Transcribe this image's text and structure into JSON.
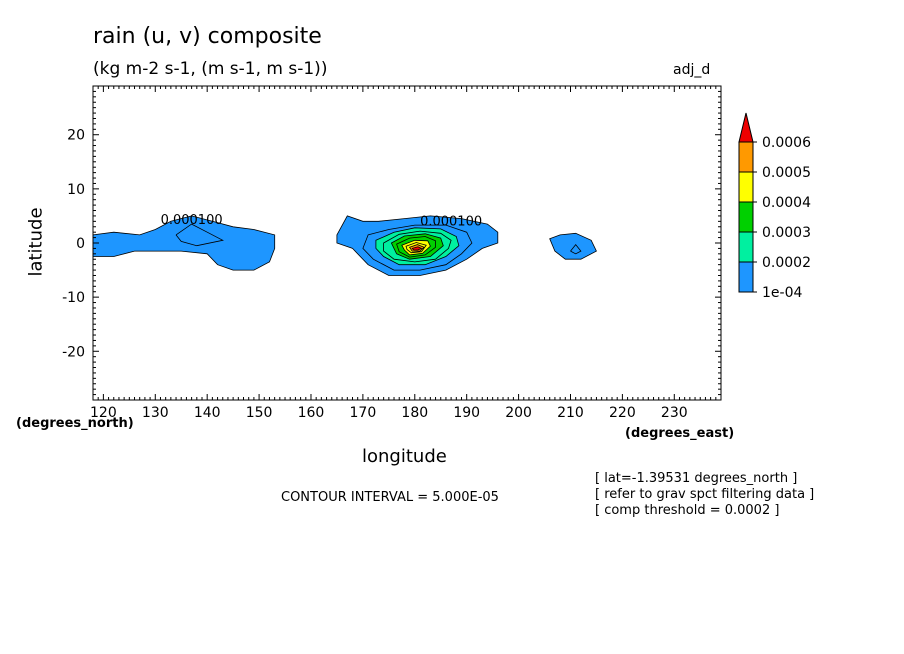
{
  "title": "rain (u, v) composite",
  "subtitle": "(kg m-2 s-1, (m s-1, m s-1))",
  "plot_tag": "adj_d",
  "notes": {
    "contour_interval": "CONTOUR INTERVAL = 5.000E-05",
    "footnotes": [
      "[ lat=-1.39531 degrees_north ]",
      "[ refer to grav spct filtering data ]",
      "[ comp threshold = 0.0002 ]"
    ]
  },
  "colors": {
    "level_1": "#1e96ff",
    "level_2": "#00f0a0",
    "level_3": "#00d000",
    "level_4": "#ffff00",
    "level_5": "#ff9900",
    "level_6": "#ee0000",
    "line": "#000000"
  },
  "chart_data": {
    "type": "contour",
    "title": "rain (u, v) composite",
    "subtitle": "(kg m-2 s-1, (m s-1, m s-1))",
    "xlabel": "longitude",
    "ylabel": "latitude",
    "x_units": "(degrees_east)",
    "y_units": "(degrees_north)",
    "xlim": [
      118,
      239
    ],
    "ylim": [
      -29,
      29
    ],
    "x_ticks": [
      120,
      130,
      140,
      150,
      160,
      170,
      180,
      190,
      200,
      210,
      220,
      230
    ],
    "x_tick_labels": [
      "120",
      "130",
      "140",
      "150",
      "160",
      "170",
      "180",
      "190",
      "200",
      "210",
      "220",
      "230"
    ],
    "y_ticks": [
      -20,
      -10,
      0,
      10,
      20
    ],
    "y_tick_labels": [
      "-20",
      "-10",
      "0",
      "10",
      "20"
    ],
    "contour_interval": 5e-05,
    "legend": {
      "placement": "right",
      "labels": [
        "1e-04",
        "0.0002",
        "0.0003",
        "0.0004",
        "0.0005",
        "0.0006"
      ],
      "levels": [
        0.0001,
        0.00015,
        0.0002,
        0.00025,
        0.0003,
        0.00035,
        0.0004,
        0.00045,
        0.0005,
        0.00055,
        0.0006
      ]
    },
    "contour_labels": [
      {
        "text": "0.000100",
        "x": 137,
        "y": 3.5
      },
      {
        "text": "0.000100",
        "x": 187,
        "y": 3.2
      }
    ],
    "regions": [
      {
        "name": "west",
        "level": 0.0001,
        "points": [
          [
            118,
            1.5
          ],
          [
            122,
            2
          ],
          [
            127,
            1.5
          ],
          [
            130,
            2.5
          ],
          [
            133,
            4
          ],
          [
            137,
            5
          ],
          [
            141,
            4
          ],
          [
            145,
            3
          ],
          [
            149,
            2.5
          ],
          [
            153,
            1.5
          ],
          [
            153,
            -1
          ],
          [
            152,
            -3.5
          ],
          [
            149,
            -5
          ],
          [
            145,
            -5
          ],
          [
            142,
            -4
          ],
          [
            140,
            -2
          ],
          [
            135,
            -1.5
          ],
          [
            130,
            -1.5
          ],
          [
            126,
            -1.5
          ],
          [
            122,
            -2.5
          ],
          [
            118,
            -2.5
          ]
        ]
      },
      {
        "name": "central",
        "level": 0.0001,
        "points": [
          [
            165,
            1.5
          ],
          [
            167,
            5
          ],
          [
            170,
            4
          ],
          [
            173,
            4
          ],
          [
            178,
            4.5
          ],
          [
            183,
            5
          ],
          [
            189,
            4.5
          ],
          [
            194,
            3.5
          ],
          [
            196,
            2
          ],
          [
            196,
            0
          ],
          [
            193,
            -1
          ],
          [
            190,
            -3
          ],
          [
            186,
            -5
          ],
          [
            181,
            -6
          ],
          [
            175,
            -6
          ],
          [
            171,
            -4
          ],
          [
            168,
            -1
          ],
          [
            165,
            0
          ]
        ]
      },
      {
        "name": "central",
        "level": 0.00015,
        "points": [
          [
            171,
            1.5
          ],
          [
            175,
            2.5
          ],
          [
            180,
            3.3
          ],
          [
            186,
            3.3
          ],
          [
            190,
            2
          ],
          [
            191,
            0
          ],
          [
            189,
            -2
          ],
          [
            186,
            -4
          ],
          [
            181,
            -5
          ],
          [
            176,
            -5
          ],
          [
            172,
            -3
          ],
          [
            170,
            -1
          ]
        ]
      },
      {
        "name": "central",
        "level": 0.0002,
        "points": [
          [
            172.5,
            0.5
          ],
          [
            176,
            2
          ],
          [
            180,
            2.8
          ],
          [
            185,
            2.6
          ],
          [
            188,
            1.2
          ],
          [
            188.5,
            -0.5
          ],
          [
            186,
            -2.5
          ],
          [
            182,
            -4
          ],
          [
            177,
            -4
          ],
          [
            174,
            -2.5
          ],
          [
            172.5,
            -1
          ]
        ]
      },
      {
        "name": "central",
        "level": 0.00025,
        "points": [
          [
            174,
            0
          ],
          [
            177,
            1.6
          ],
          [
            181,
            2.2
          ],
          [
            185,
            1.8
          ],
          [
            187,
            0.5
          ],
          [
            186.5,
            -1
          ],
          [
            184,
            -3
          ],
          [
            180,
            -3.5
          ],
          [
            176,
            -3
          ],
          [
            174,
            -1.5
          ]
        ]
      },
      {
        "name": "central",
        "level": 0.0003,
        "points": [
          [
            175.5,
            0
          ],
          [
            178,
            1.3
          ],
          [
            182,
            1.7
          ],
          [
            185,
            0.9
          ],
          [
            185.5,
            -0.5
          ],
          [
            183,
            -2.5
          ],
          [
            179,
            -3
          ],
          [
            176.5,
            -2
          ]
        ]
      },
      {
        "name": "central",
        "level": 0.00035,
        "points": [
          [
            176.5,
            -0.2
          ],
          [
            179,
            0.9
          ],
          [
            182,
            1.2
          ],
          [
            184,
            0.4
          ],
          [
            184,
            -0.8
          ],
          [
            182,
            -2.2
          ],
          [
            179,
            -2.6
          ],
          [
            177,
            -1.6
          ]
        ]
      },
      {
        "name": "central",
        "level": 0.0004,
        "points": [
          [
            177.5,
            -0.4
          ],
          [
            180,
            0.5
          ],
          [
            182.5,
            0.4
          ],
          [
            183,
            -0.6
          ],
          [
            181.5,
            -1.9
          ],
          [
            179,
            -2.2
          ],
          [
            178,
            -1.3
          ]
        ]
      },
      {
        "name": "central",
        "level": 0.00045,
        "points": [
          [
            178.3,
            -0.6
          ],
          [
            180.3,
            0.1
          ],
          [
            182.2,
            -0.4
          ],
          [
            181.3,
            -1.6
          ],
          [
            179.3,
            -1.8
          ],
          [
            178.5,
            -1.2
          ]
        ]
      },
      {
        "name": "central",
        "level": 0.0005,
        "points": [
          [
            179,
            -0.8
          ],
          [
            180.5,
            -0.3
          ],
          [
            181.8,
            -0.8
          ],
          [
            181,
            -1.5
          ],
          [
            179.5,
            -1.5
          ]
        ]
      },
      {
        "name": "central",
        "level": 0.0006,
        "points": [
          [
            179.5,
            -1
          ],
          [
            180.6,
            -0.7
          ],
          [
            181.3,
            -1
          ],
          [
            180.6,
            -1.3
          ],
          [
            179.8,
            -1.3
          ]
        ]
      },
      {
        "name": "east",
        "level": 0.0001,
        "points": [
          [
            206,
            0.8
          ],
          [
            208,
            1.5
          ],
          [
            211,
            1.8
          ],
          [
            214,
            0.5
          ],
          [
            215,
            -1.5
          ],
          [
            212,
            -3
          ],
          [
            209,
            -3
          ],
          [
            207,
            -1.5
          ]
        ]
      }
    ],
    "contour_lines": [
      {
        "level": 0.00015,
        "points": [
          [
            134,
            1.5
          ],
          [
            137,
            3.5
          ],
          [
            140,
            2
          ],
          [
            143,
            0.5
          ],
          [
            138,
            -0.5
          ],
          [
            135,
            0.3
          ],
          [
            134,
            1.5
          ]
        ]
      },
      {
        "level": 0.00015,
        "points": [
          [
            210,
            -1.5
          ],
          [
            211,
            -0.3
          ],
          [
            212,
            -1.5
          ],
          [
            211,
            -2
          ],
          [
            210,
            -1.5
          ]
        ]
      }
    ]
  }
}
